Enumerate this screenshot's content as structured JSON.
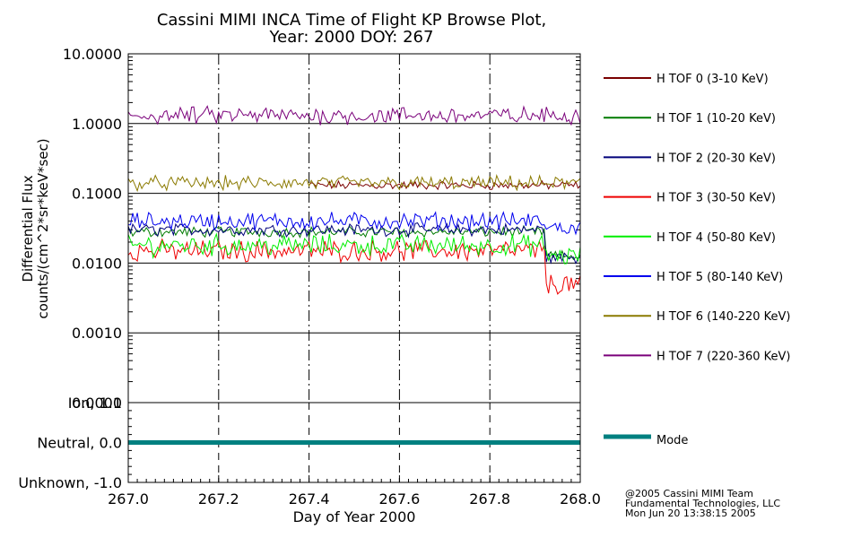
{
  "chart_data": {
    "type": "line",
    "title": "Cassini MIMI INCA Time of Flight KP Browse Plot,",
    "subtitle": "Year: 2000 DOY: 267",
    "ylabel_line1": "Differential Flux",
    "ylabel_line2": "counts/(cm^2*sr*keV*sec)",
    "xlabel": "Day of Year 2000",
    "xlim": [
      267.0,
      268.0
    ],
    "ylim": [
      0.0001,
      10.0
    ],
    "yscale": "log",
    "x_ticks": [
      267.0,
      267.2,
      267.4,
      267.6,
      267.8,
      268.0
    ],
    "x_tick_labels": [
      "267.0",
      "267.2",
      "267.4",
      "267.6",
      "267.8",
      "268.0"
    ],
    "y_ticks": [
      10.0,
      1.0,
      0.1,
      0.01,
      0.001,
      0.0001
    ],
    "y_tick_labels": [
      "10.0000",
      "1.0000",
      "0.1000",
      "0.0100",
      "0.0010",
      "0.0001"
    ],
    "series": [
      {
        "name": "H TOF 0 (3-10 KeV)",
        "color": "#7a0000",
        "level": 0.13,
        "jitter": 0.05,
        "start_idx": 80,
        "drop": 1.0
      },
      {
        "name": "H TOF 1 (10-20 KeV)",
        "color": "#007a00",
        "level": 0.028,
        "jitter": 0.06,
        "start_idx": 0,
        "drop": 0.45
      },
      {
        "name": "H TOF 2 (20-30 KeV)",
        "color": "#00007a",
        "level": 0.03,
        "jitter": 0.07,
        "start_idx": 0,
        "drop": 0.4
      },
      {
        "name": "H TOF 3 (30-50 KeV)",
        "color": "#ee0000",
        "level": 0.015,
        "jitter": 0.12,
        "start_idx": 0,
        "drop": 0.33
      },
      {
        "name": "H TOF 4 (50-80 KeV)",
        "color": "#00ee00",
        "level": 0.018,
        "jitter": 0.12,
        "start_idx": 0,
        "drop": 0.7
      },
      {
        "name": "H TOF 5 (80-140 KeV)",
        "color": "#0000ee",
        "level": 0.04,
        "jitter": 0.1,
        "start_idx": 0,
        "drop": 0.8
      },
      {
        "name": "H TOF 6 (140-220 KeV)",
        "color": "#8b7a00",
        "level": 0.14,
        "jitter": 0.08,
        "start_idx": 0,
        "drop": 1.0
      },
      {
        "name": "H TOF 7 (220-360 KeV)",
        "color": "#7a007a",
        "level": 1.3,
        "jitter": 0.1,
        "start_idx": 0,
        "drop": 1.0
      }
    ],
    "mode_panel": {
      "ylim": [
        -1.0,
        1.0
      ],
      "y_ticks": [
        1.0,
        0.0,
        -1.0
      ],
      "y_tick_labels": [
        "Ion, 1.0",
        "Neutral, 0.0",
        "Unknown, -1.0"
      ],
      "value": 0.0,
      "legend": "Mode",
      "color": "#008080"
    }
  },
  "footer": {
    "line1": "@2005 Cassini MIMI Team",
    "line2": "Fundamental Technologies, LLC",
    "line3": "Mon Jun 20 13:38:15 2005"
  }
}
